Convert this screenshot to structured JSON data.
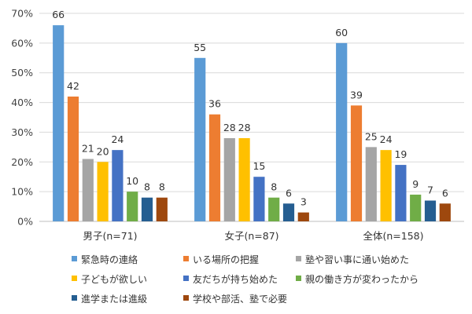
{
  "chart_data": {
    "type": "bar",
    "categories": [
      "男子(n=71)",
      "女子(n=87)",
      "全体(n=158)"
    ],
    "series": [
      {
        "name": "緊急時の連絡",
        "color": "#5B9BD5",
        "values": [
          66,
          55,
          60
        ]
      },
      {
        "name": "いる場所の把握",
        "color": "#ED7D31",
        "values": [
          42,
          36,
          39
        ]
      },
      {
        "name": "塾や習い事に通い始めた",
        "color": "#A5A5A5",
        "values": [
          21,
          28,
          25
        ]
      },
      {
        "name": "子どもが欲しい",
        "color": "#FFC000",
        "values": [
          20,
          28,
          24
        ]
      },
      {
        "name": "友だちが持ち始めた",
        "color": "#4472C4",
        "values": [
          24,
          15,
          19
        ]
      },
      {
        "name": "親の働き方が変わったから",
        "color": "#70AD47",
        "values": [
          10,
          8,
          9
        ]
      },
      {
        "name": "進学または進級",
        "color": "#255E91",
        "values": [
          8,
          6,
          7
        ]
      },
      {
        "name": "学校や部活、塾で必要",
        "color": "#9E480E",
        "values": [
          8,
          3,
          6
        ]
      }
    ],
    "ylim": [
      0,
      70
    ],
    "yticks": [
      "0%",
      "10%",
      "20%",
      "30%",
      "40%",
      "50%",
      "60%",
      "70%"
    ],
    "grid": true,
    "legend_position": "bottom"
  }
}
